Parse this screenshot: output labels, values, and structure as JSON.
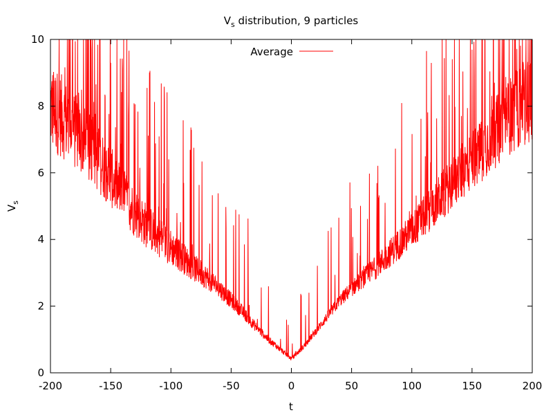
{
  "chart_data": {
    "type": "line",
    "title": {
      "main": "V",
      "sub": "s",
      "rest": " distribution, 9 particles"
    },
    "xlabel": "t",
    "ylabel": {
      "main": "V",
      "sub": "s"
    },
    "xlim": [
      -200,
      200
    ],
    "ylim": [
      0,
      10
    ],
    "xticks": [
      -200,
      -150,
      -100,
      -50,
      0,
      50,
      100,
      150,
      200
    ],
    "yticks": [
      0,
      2,
      4,
      6,
      8,
      10
    ],
    "xtick_labels": [
      "-200",
      "-150",
      "-100",
      "-50",
      "0",
      "50",
      "100",
      "150",
      "200"
    ],
    "ytick_labels": [
      "0",
      "2",
      "4",
      "6",
      "8",
      "10"
    ],
    "grid": false,
    "legend": {
      "placement": "top-center"
    },
    "series": [
      {
        "name": "Average",
        "color": "#ff0000",
        "x": [
          -200,
          -190,
          -180,
          -170,
          -160,
          -150,
          -140,
          -130,
          -120,
          -110,
          -100,
          -90,
          -80,
          -70,
          -60,
          -50,
          -40,
          -30,
          -20,
          -10,
          0,
          10,
          20,
          30,
          40,
          50,
          60,
          70,
          80,
          90,
          100,
          110,
          120,
          130,
          140,
          150,
          160,
          170,
          180,
          190,
          200
        ],
        "y": [
          7.6,
          7.3,
          6.9,
          6.5,
          6.1,
          5.6,
          5.1,
          4.6,
          4.2,
          3.9,
          3.6,
          3.3,
          3.0,
          2.75,
          2.45,
          2.1,
          1.75,
          1.35,
          1.0,
          0.7,
          0.4,
          0.75,
          1.2,
          1.65,
          2.1,
          2.45,
          2.75,
          3.05,
          3.4,
          3.75,
          4.1,
          4.5,
          4.9,
          5.3,
          5.7,
          6.1,
          6.5,
          6.9,
          7.3,
          7.6,
          7.9
        ]
      }
    ]
  }
}
